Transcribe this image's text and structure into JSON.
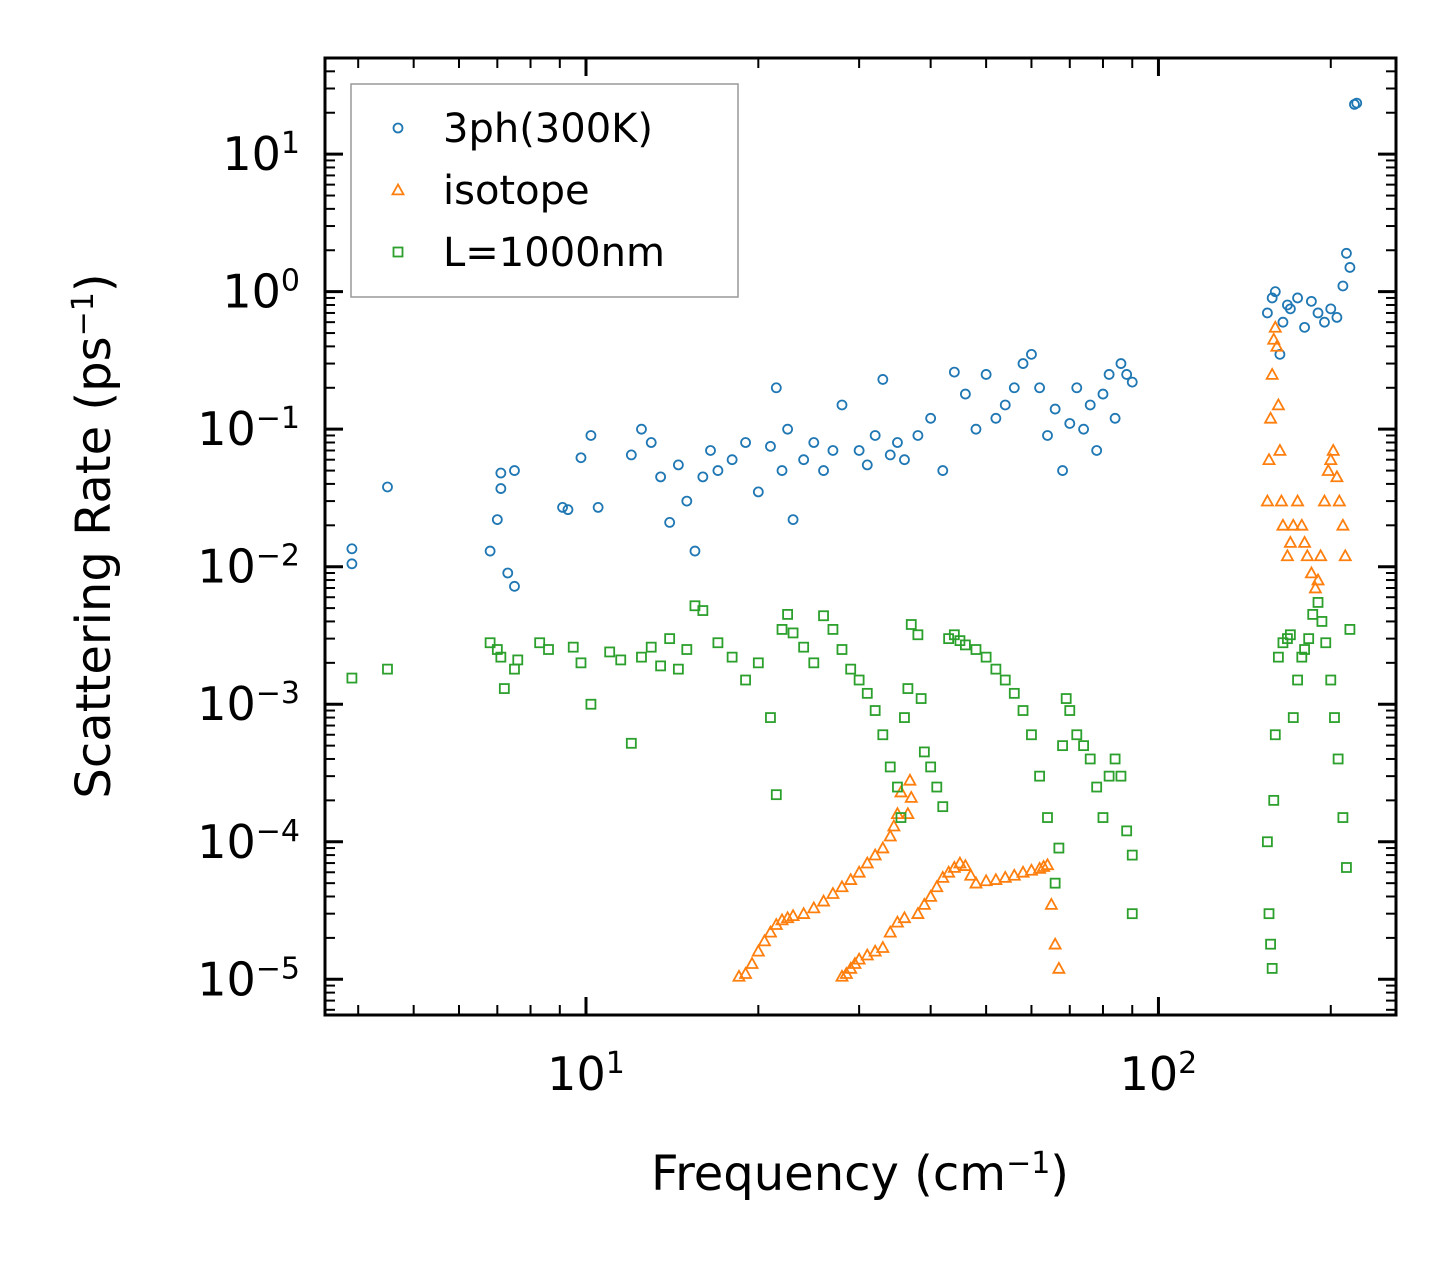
{
  "chart_data": {
    "type": "scatter",
    "title": "",
    "xscale": "log",
    "yscale": "log",
    "xlim": [
      3.5,
      260
    ],
    "ylim": [
      5.5e-06,
      50
    ],
    "xlabel": {
      "main": "Frequency (cm",
      "sup": "−1",
      "end": ")"
    },
    "ylabel": {
      "main": "Scattering Rate (ps",
      "sup": "−1",
      "end": ")"
    },
    "x_ticks": [
      {
        "value": 10,
        "base": "10",
        "exp": "1"
      },
      {
        "value": 100,
        "base": "10",
        "exp": "2"
      }
    ],
    "y_ticks": [
      {
        "value": 1e-05,
        "base": "10",
        "exp": "−5"
      },
      {
        "value": 0.0001,
        "base": "10",
        "exp": "−4"
      },
      {
        "value": 0.001,
        "base": "10",
        "exp": "−3"
      },
      {
        "value": 0.01,
        "base": "10",
        "exp": "−2"
      },
      {
        "value": 0.1,
        "base": "10",
        "exp": "−1"
      },
      {
        "value": 1,
        "base": "10",
        "exp": "0"
      },
      {
        "value": 10,
        "base": "10",
        "exp": "1"
      }
    ],
    "legend_position": "top-left",
    "series": [
      {
        "name": "3ph(300K)",
        "marker": "circle",
        "color": "#1f77b4",
        "x": [
          3.9,
          3.9,
          4.5,
          6.8,
          7.0,
          7.1,
          7.1,
          7.3,
          7.5,
          7.5,
          9.1,
          9.3,
          9.8,
          10.2,
          10.5,
          12.0,
          12.5,
          13.0,
          13.5,
          14.0,
          14.5,
          15.0,
          15.5,
          16.0,
          16.5,
          17.0,
          18.0,
          19.0,
          20.0,
          21.0,
          21.5,
          22.0,
          22.5,
          23.0,
          24.0,
          25.0,
          26.0,
          27.0,
          28.0,
          30.0,
          31.0,
          32.0,
          33.0,
          34.0,
          35.0,
          36.0,
          38.0,
          40.0,
          42.0,
          44.0,
          46.0,
          48.0,
          50.0,
          52.0,
          54.0,
          56.0,
          58.0,
          60.0,
          62.0,
          64.0,
          66.0,
          68.0,
          70.0,
          72.0,
          74.0,
          76.0,
          78.0,
          80.0,
          82.0,
          84.0,
          86.0,
          88.0,
          90.0,
          155,
          158,
          160,
          163,
          165,
          168,
          170,
          175,
          180,
          185,
          190,
          195,
          200,
          205,
          210,
          213,
          216,
          220,
          222
        ],
        "y": [
          0.0105,
          0.0135,
          0.038,
          0.013,
          0.022,
          0.048,
          0.037,
          0.009,
          0.0072,
          0.05,
          0.027,
          0.026,
          0.062,
          0.09,
          0.027,
          0.065,
          0.1,
          0.08,
          0.045,
          0.021,
          0.055,
          0.03,
          0.013,
          0.045,
          0.07,
          0.05,
          0.06,
          0.08,
          0.035,
          0.075,
          0.2,
          0.05,
          0.1,
          0.022,
          0.06,
          0.08,
          0.05,
          0.07,
          0.15,
          0.07,
          0.055,
          0.09,
          0.23,
          0.065,
          0.08,
          0.06,
          0.09,
          0.12,
          0.05,
          0.26,
          0.18,
          0.1,
          0.25,
          0.12,
          0.15,
          0.2,
          0.3,
          0.35,
          0.2,
          0.09,
          0.14,
          0.05,
          0.11,
          0.2,
          0.1,
          0.15,
          0.07,
          0.18,
          0.25,
          0.12,
          0.3,
          0.25,
          0.22,
          0.7,
          0.9,
          1.0,
          0.35,
          0.6,
          0.8,
          0.75,
          0.9,
          0.55,
          0.85,
          0.7,
          0.6,
          0.75,
          0.65,
          1.1,
          1.9,
          1.5,
          23,
          23.5
        ]
      },
      {
        "name": "isotope",
        "marker": "triangle",
        "color": "#ff7f0e",
        "x": [
          18.5,
          19,
          19.5,
          20,
          20.5,
          21,
          21.5,
          22,
          22.5,
          23,
          24,
          25,
          26,
          27,
          28,
          29,
          30,
          31,
          32,
          33,
          34,
          34.5,
          35,
          35.5,
          28,
          28.5,
          29,
          29.5,
          30,
          31,
          32,
          33,
          34,
          35,
          36,
          36.5,
          36.8,
          37,
          38,
          39,
          40,
          41,
          42,
          43,
          44,
          45,
          46,
          47,
          48,
          50,
          52,
          54,
          56,
          58,
          60,
          62,
          63,
          64,
          65,
          66,
          67,
          155,
          156,
          157,
          158,
          159,
          160,
          161,
          162,
          163,
          164,
          165,
          168,
          170,
          172,
          175,
          178,
          180,
          182,
          185,
          188,
          190,
          192,
          195,
          198,
          200,
          202,
          205,
          207,
          210,
          212
        ],
        "y": [
          1.05e-05,
          1.1e-05,
          1.3e-05,
          1.6e-05,
          1.9e-05,
          2.2e-05,
          2.5e-05,
          2.7e-05,
          2.8e-05,
          2.9e-05,
          3e-05,
          3.3e-05,
          3.7e-05,
          4.2e-05,
          4.7e-05,
          5.3e-05,
          6e-05,
          7e-05,
          8e-05,
          9e-05,
          0.00011,
          0.00013,
          0.00016,
          0.00023,
          1.05e-05,
          1.1e-05,
          1.2e-05,
          1.3e-05,
          1.4e-05,
          1.5e-05,
          1.6e-05,
          1.7e-05,
          2.2e-05,
          2.6e-05,
          2.8e-05,
          0.00016,
          0.00028,
          0.00021,
          3e-05,
          3.5e-05,
          4e-05,
          4.7e-05,
          5.5e-05,
          6e-05,
          6.5e-05,
          7e-05,
          6.7e-05,
          5.7e-05,
          5e-05,
          5.2e-05,
          5.3e-05,
          5.5e-05,
          5.7e-05,
          6e-05,
          6.2e-05,
          6.4e-05,
          6.6e-05,
          6.8e-05,
          3.5e-05,
          1.8e-05,
          1.2e-05,
          0.03,
          0.06,
          0.12,
          0.25,
          0.45,
          0.55,
          0.4,
          0.15,
          0.07,
          0.03,
          0.02,
          0.012,
          0.015,
          0.02,
          0.03,
          0.02,
          0.015,
          0.012,
          0.009,
          0.007,
          0.008,
          0.012,
          0.03,
          0.05,
          0.06,
          0.07,
          0.045,
          0.03,
          0.02,
          0.012
        ]
      },
      {
        "name": "L=1000nm",
        "marker": "square",
        "color": "#2ca02c",
        "x": [
          3.9,
          4.5,
          6.8,
          7.0,
          7.1,
          7.2,
          7.5,
          7.6,
          8.3,
          8.6,
          9.5,
          9.8,
          10.2,
          11.0,
          11.5,
          12.0,
          12.5,
          13.0,
          13.5,
          14.0,
          14.5,
          15.0,
          15.5,
          16.0,
          17.0,
          18.0,
          19.0,
          20.0,
          21.0,
          21.5,
          22.0,
          22.5,
          23.0,
          24.0,
          25.0,
          26.0,
          27.0,
          28.0,
          29.0,
          30.0,
          31.0,
          32.0,
          33.0,
          34.0,
          35.0,
          35.5,
          36.0,
          36.5,
          37.0,
          38.0,
          38.5,
          39.0,
          40.0,
          41.0,
          42.0,
          43.0,
          44.0,
          45.0,
          46.0,
          48.0,
          50.0,
          52.0,
          54.0,
          56.0,
          58.0,
          60.0,
          62.0,
          64.0,
          66.0,
          67.0,
          68.0,
          69.0,
          70.0,
          72.0,
          74.0,
          76.0,
          78.0,
          80.0,
          82.0,
          84.0,
          86.0,
          88.0,
          90.0,
          90.0,
          155,
          156,
          157,
          158,
          159,
          160,
          162,
          165,
          168,
          170,
          172,
          175,
          178,
          180,
          183,
          186,
          190,
          193,
          196,
          200,
          203,
          206,
          210,
          213,
          216
        ],
        "y": [
          0.00155,
          0.0018,
          0.0028,
          0.0025,
          0.0022,
          0.0013,
          0.0018,
          0.0021,
          0.0028,
          0.0025,
          0.0026,
          0.002,
          0.001,
          0.0024,
          0.0021,
          0.00052,
          0.0022,
          0.0026,
          0.0019,
          0.003,
          0.0018,
          0.0025,
          0.0052,
          0.0048,
          0.0028,
          0.0022,
          0.0015,
          0.002,
          0.0008,
          0.00022,
          0.0035,
          0.0045,
          0.0033,
          0.0026,
          0.002,
          0.0044,
          0.0035,
          0.0025,
          0.0018,
          0.0015,
          0.0012,
          0.0009,
          0.0006,
          0.00035,
          0.00025,
          0.00015,
          0.0008,
          0.0013,
          0.0038,
          0.0032,
          0.0011,
          0.00045,
          0.00035,
          0.00025,
          0.00018,
          0.003,
          0.0032,
          0.0029,
          0.0027,
          0.0025,
          0.0022,
          0.0018,
          0.0015,
          0.0012,
          0.0009,
          0.0006,
          0.0003,
          0.00015,
          5e-05,
          9e-05,
          0.0005,
          0.0011,
          0.0009,
          0.0006,
          0.0005,
          0.0004,
          0.00025,
          0.00015,
          0.0003,
          0.0004,
          0.0003,
          0.00012,
          8e-05,
          3e-05,
          0.0001,
          3e-05,
          1.8e-05,
          1.2e-05,
          0.0002,
          0.0006,
          0.0022,
          0.0028,
          0.003,
          0.0032,
          0.0008,
          0.0015,
          0.0022,
          0.0025,
          0.003,
          0.0045,
          0.0055,
          0.004,
          0.0028,
          0.0015,
          0.0008,
          0.0004,
          0.00015,
          6.5e-05,
          0.0035
        ]
      }
    ]
  }
}
